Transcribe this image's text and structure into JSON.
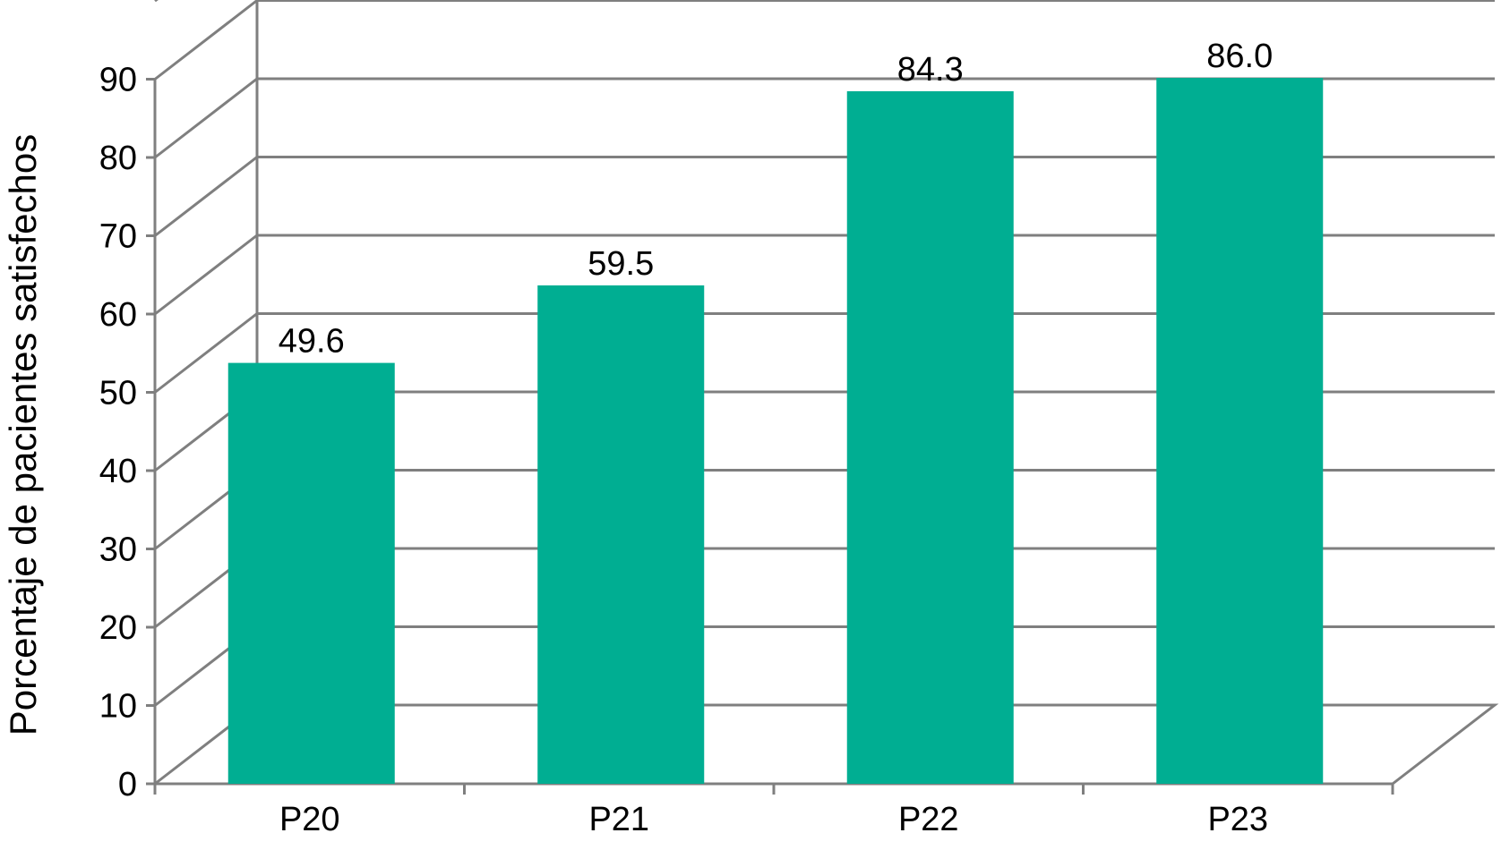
{
  "chart_data": {
    "type": "bar",
    "title": "",
    "xlabel": "",
    "ylabel": "Porcentaje de pacientes satisfechos",
    "categories": [
      "P20",
      "P21",
      "P22",
      "P23"
    ],
    "values": [
      49.6,
      59.5,
      84.3,
      86.0
    ],
    "value_labels": [
      "49.6",
      "59.5",
      "84.3",
      "86.0"
    ],
    "y_ticks": [
      "0",
      "10",
      "20",
      "30",
      "40",
      "50",
      "60",
      "70",
      "80",
      "90"
    ],
    "ylim": [
      0,
      90
    ],
    "grid": true,
    "style": "3d-walls",
    "legend": "none",
    "colors": {
      "bar": "#00ae92",
      "grid": "#7f7f7f"
    }
  }
}
